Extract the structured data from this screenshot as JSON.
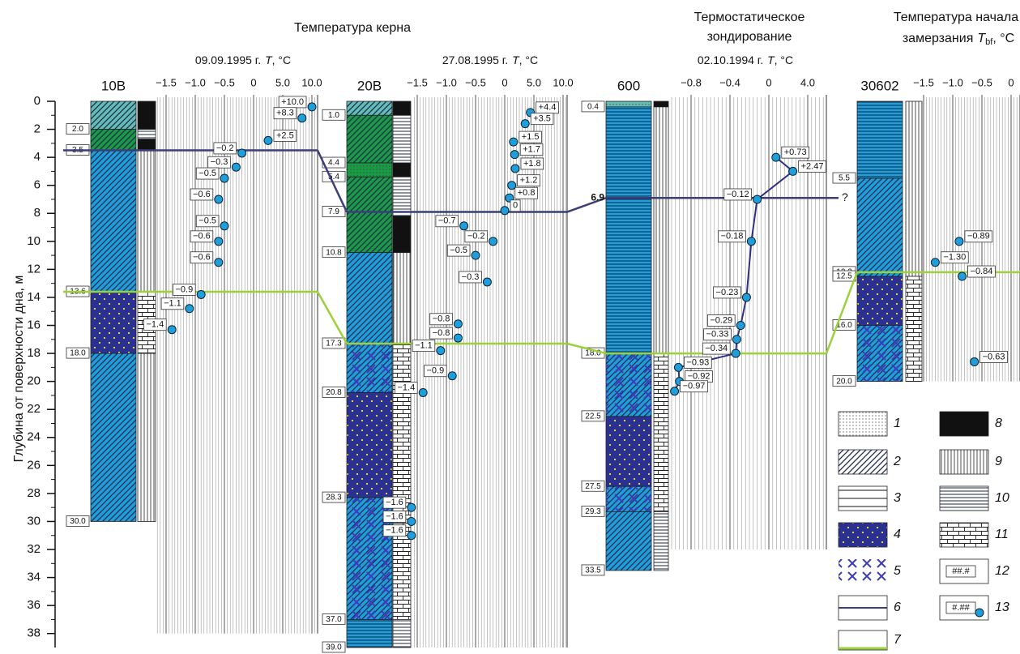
{
  "y_axis": {
    "label": "Глубина от поверхности дна, м",
    "ylim": [
      0,
      39
    ],
    "yticks": [
      0,
      2,
      4,
      6,
      8,
      10,
      12,
      14,
      16,
      18,
      20,
      22,
      24,
      26,
      28,
      30,
      32,
      34,
      36,
      38
    ]
  },
  "point_color": "#1e9fdc",
  "titles": {
    "core": "Температура керна",
    "probe": [
      "Термостатическое",
      "зондирование"
    ],
    "freeze": {
      "line1": "Температура начала",
      "line2": "замерзания",
      "symbol": "T",
      "subscript": "bf",
      "unit": ", °C"
    }
  },
  "legend": [
    {
      "label": "1",
      "color": "#ffffff"
    },
    {
      "label": "2",
      "color": "#ffffff"
    },
    {
      "label": "3",
      "color": "#ffffff"
    },
    {
      "label": "4",
      "color": "#2b3190"
    },
    {
      "label": "5",
      "color": "#ffffff"
    },
    {
      "label": "6",
      "color": "#3b3f78"
    },
    {
      "label": "7",
      "color": "#9bd13a"
    },
    {
      "label": "8",
      "color": "#111111"
    },
    {
      "label": "9",
      "color": "#ffffff"
    },
    {
      "label": "10",
      "color": "#ffffff"
    },
    {
      "label": "11",
      "color": "#ffffff"
    },
    {
      "label": "12",
      "sample": "##.#"
    },
    {
      "label": "13",
      "sample": "#.##"
    }
  ],
  "boundaries": [
    {
      "legend": "6",
      "depths": [
        3.5,
        7.9,
        6.9,
        null
      ],
      "note": "?"
    },
    {
      "legend": "7",
      "depths": [
        13.6,
        17.3,
        18.0,
        12.2
      ]
    }
  ],
  "boreholes": [
    {
      "name": "10В",
      "date": "09.09.1995 г.",
      "symbol": "T",
      "unit": ", °C",
      "xticks": [
        {
          "value": -1.5,
          "label": "−1.5"
        },
        {
          "value": -1,
          "label": "−1.0"
        },
        {
          "value": -0.5,
          "label": "−0.5"
        },
        0,
        {
          "value": 5,
          "label": "5.0"
        },
        {
          "value": 10,
          "label": "10.0"
        }
      ],
      "layers": [
        {
          "top": 0,
          "bottom": 2,
          "pattern": [
            "2"
          ],
          "color": "#62bdb4"
        },
        {
          "top": 2,
          "bottom": 3.5,
          "pattern": [
            "2"
          ],
          "color": "#1b9a45"
        },
        {
          "top": 3.5,
          "bottom": 13.6,
          "pattern": [
            "2"
          ],
          "color": "#1e9fdc"
        },
        {
          "top": 13.6,
          "bottom": 18,
          "pattern": [
            "4"
          ],
          "color": "#2b3190"
        },
        {
          "top": 18,
          "bottom": 30,
          "pattern": [
            "2"
          ],
          "color": "#1e9fdc"
        }
      ],
      "strip": [
        {
          "top": 0,
          "bottom": 2,
          "pattern": [
            "8"
          ]
        },
        {
          "top": 2,
          "bottom": 2.7,
          "pattern": [
            "10"
          ]
        },
        {
          "top": 2.7,
          "bottom": 3.5,
          "pattern": [
            "8"
          ]
        },
        {
          "top": 3.5,
          "bottom": 13.6,
          "pattern": [
            "9"
          ]
        },
        {
          "top": 13.6,
          "bottom": 18,
          "pattern": [
            "11"
          ]
        },
        {
          "top": 18,
          "bottom": 30,
          "pattern": [
            "9"
          ]
        }
      ],
      "depth_labels": [
        {
          "value": 2,
          "label": "2.0"
        },
        3.5,
        13.6,
        {
          "value": 18,
          "label": "18.0"
        },
        {
          "value": 30,
          "label": "30.0"
        }
      ],
      "points": [
        {
          "depth": 0.4,
          "temp": 10,
          "label": "+10.0"
        },
        {
          "depth": 1.2,
          "temp": 8.3,
          "label": "+8.3"
        },
        {
          "depth": 2.8,
          "temp": 2.5,
          "label": "+2.5"
        },
        {
          "depth": 3.7,
          "temp": -0.2,
          "label": "−0.2"
        },
        {
          "depth": 4.7,
          "temp": -0.3,
          "label": "−0.3"
        },
        {
          "depth": 5.5,
          "temp": -0.5,
          "label": "−0.5"
        },
        {
          "depth": 7.0,
          "temp": -0.6,
          "label": "−0.6"
        },
        {
          "depth": 8.9,
          "temp": -0.5,
          "label": "−0.5"
        },
        {
          "depth": 10.0,
          "temp": -0.6,
          "label": "−0.6"
        },
        {
          "depth": 11.5,
          "temp": -0.6,
          "label": "−0.6"
        },
        {
          "depth": 13.8,
          "temp": -0.9,
          "label": "−0.9"
        },
        {
          "depth": 14.8,
          "temp": -1.1,
          "label": "−1.1"
        },
        {
          "depth": 16.3,
          "temp": -1.4,
          "label": "−1.4"
        }
      ]
    },
    {
      "name": "20В",
      "date": "27.08.1995 г.",
      "symbol": "T",
      "unit": ", °C",
      "xticks": [
        {
          "value": -1.5,
          "label": "−1.5"
        },
        {
          "value": -1,
          "label": "−1.0"
        },
        {
          "value": -0.5,
          "label": "−0.5"
        },
        0,
        {
          "value": 5,
          "label": "5.0"
        },
        {
          "value": 10,
          "label": "10.0"
        }
      ],
      "layers": [
        {
          "top": 0,
          "bottom": 1,
          "pattern": [
            "2"
          ],
          "color": "#62bdb4"
        },
        {
          "top": 1,
          "bottom": 4.4,
          "pattern": [
            "2"
          ],
          "color": "#1b9a45"
        },
        {
          "top": 4.4,
          "bottom": 5.4,
          "pattern": [
            "1"
          ],
          "color": "#1b9a45"
        },
        {
          "top": 5.4,
          "bottom": 10.8,
          "pattern": [
            "2"
          ],
          "color": "#1b9a45"
        },
        {
          "top": 10.8,
          "bottom": 17.3,
          "pattern": [
            "2"
          ],
          "color": "#1e9fdc"
        },
        {
          "top": 17.3,
          "bottom": 20.8,
          "pattern": [
            "2",
            "5"
          ],
          "color": "#1e9fdc"
        },
        {
          "top": 20.8,
          "bottom": 28.3,
          "pattern": [
            "4"
          ],
          "color": "#2b3190"
        },
        {
          "top": 28.3,
          "bottom": 37,
          "pattern": [
            "2",
            "5"
          ],
          "color": "#1e9fdc"
        },
        {
          "top": 37,
          "bottom": 39,
          "pattern": [
            "10"
          ],
          "color": "#1e9fdc"
        }
      ],
      "strip": [
        {
          "top": 0,
          "bottom": 1,
          "pattern": [
            "8"
          ]
        },
        {
          "top": 1,
          "bottom": 4.4,
          "pattern": [
            "10"
          ]
        },
        {
          "top": 4.4,
          "bottom": 5.4,
          "pattern": [
            "8"
          ]
        },
        {
          "top": 5.4,
          "bottom": 8.2,
          "pattern": [
            "10"
          ]
        },
        {
          "top": 8.2,
          "bottom": 10.8,
          "pattern": [
            "8"
          ]
        },
        {
          "top": 10.8,
          "bottom": 17.3,
          "pattern": [
            "9"
          ]
        },
        {
          "top": 17.3,
          "bottom": 37,
          "pattern": [
            "11"
          ]
        },
        {
          "top": 37,
          "bottom": 39,
          "pattern": [
            "10"
          ]
        }
      ],
      "depth_labels": [
        {
          "value": 1,
          "label": "1.0"
        },
        4.4,
        5.4,
        7.9,
        10.8,
        17.3,
        20.8,
        28.3,
        {
          "value": 37,
          "label": "37.0"
        },
        {
          "value": 39,
          "label": "39.0"
        }
      ],
      "points": [
        {
          "depth": 0.8,
          "temp": 4.4,
          "label": "+4.4"
        },
        {
          "depth": 1.6,
          "temp": 3.5,
          "label": "+3.5"
        },
        {
          "depth": 2.9,
          "temp": 1.5,
          "label": "+1.5"
        },
        {
          "depth": 3.8,
          "temp": 1.7,
          "label": "+1.7"
        },
        {
          "depth": 4.8,
          "temp": 1.8,
          "label": "+1.8"
        },
        {
          "depth": 6.0,
          "temp": 1.2,
          "label": "+1.2"
        },
        {
          "depth": 6.9,
          "temp": 0.8,
          "label": "+0.8"
        },
        {
          "depth": 7.8,
          "temp": 0,
          "label": "0"
        },
        {
          "depth": 8.9,
          "temp": -0.7,
          "label": "−0.7"
        },
        {
          "depth": 10.0,
          "temp": -0.2,
          "label": "−0.2"
        },
        {
          "depth": 11.0,
          "temp": -0.5,
          "label": "−0.5"
        },
        {
          "depth": 12.9,
          "temp": -0.3,
          "label": "−0.3"
        },
        {
          "depth": 15.9,
          "temp": -0.8,
          "label": "−0.8"
        },
        {
          "depth": 16.9,
          "temp": -0.8,
          "label": "−0.8"
        },
        {
          "depth": 17.8,
          "temp": -1.1,
          "label": "−1.1"
        },
        {
          "depth": 19.6,
          "temp": -0.9,
          "label": "−0.9"
        },
        {
          "depth": 20.8,
          "temp": -1.4,
          "label": "−1.4"
        },
        {
          "depth": 29.0,
          "temp": -1.6,
          "label": "−1.6"
        },
        {
          "depth": 30.0,
          "temp": -1.6,
          "label": "−1.6"
        },
        {
          "depth": 31.0,
          "temp": -1.6,
          "label": "−1.6"
        }
      ]
    },
    {
      "name": "600",
      "date": "02.10.1994 г.",
      "symbol": "T",
      "unit": ", °C",
      "connected": true,
      "line_color": "#2e3080",
      "xticks": [
        {
          "value": -0.8,
          "label": "−0.8"
        },
        {
          "value": -0.4,
          "label": "−0.4"
        },
        0,
        {
          "value": 4,
          "label": "4.0"
        }
      ],
      "layers": [
        {
          "top": 0,
          "bottom": 0.4,
          "pattern": [
            "1"
          ],
          "color": "#62bdb4"
        },
        {
          "top": 0.4,
          "bottom": 18,
          "pattern": [
            "10"
          ],
          "color": "#1e9fdc"
        },
        {
          "top": 18,
          "bottom": 22.5,
          "pattern": [
            "2",
            "5"
          ],
          "color": "#1e9fdc"
        },
        {
          "top": 22.5,
          "bottom": 27.5,
          "pattern": [
            "4"
          ],
          "color": "#2b3190"
        },
        {
          "top": 27.5,
          "bottom": 29.3,
          "pattern": [
            "2",
            "5"
          ],
          "color": "#1e9fdc"
        },
        {
          "top": 29.3,
          "bottom": 33.5,
          "pattern": [
            "2"
          ],
          "color": "#1e9fdc"
        }
      ],
      "strip": [
        {
          "top": 0,
          "bottom": 0.4,
          "pattern": [
            "8"
          ]
        },
        {
          "top": 0.4,
          "bottom": 18,
          "pattern": [
            "9"
          ]
        },
        {
          "top": 18,
          "bottom": 29.3,
          "pattern": [
            "11"
          ]
        },
        {
          "top": 29.3,
          "bottom": 33.5,
          "pattern": [
            "10"
          ]
        }
      ],
      "depth_labels": [
        0.4,
        {
          "value": 18,
          "label": "18.0"
        },
        22.5,
        27.5,
        29.3,
        33.5
      ],
      "points": [
        {
          "depth": 4.0,
          "temp": 0.73,
          "label": "+0.73"
        },
        {
          "depth": 5.0,
          "temp": 2.47,
          "label": "+2.47"
        },
        {
          "depth": 7.0,
          "temp": -0.12,
          "label": "−0.12"
        },
        {
          "depth": 10.0,
          "temp": -0.18,
          "label": "−0.18"
        },
        {
          "depth": 14.0,
          "temp": -0.23,
          "label": "−0.23"
        },
        {
          "depth": 16.0,
          "temp": -0.29,
          "label": "−0.29"
        },
        {
          "depth": 17.0,
          "temp": -0.33,
          "label": "−0.33"
        },
        {
          "depth": 18.0,
          "temp": -0.34,
          "label": "−0.34"
        },
        {
          "depth": 19.0,
          "temp": -0.93,
          "label": "−0.93"
        },
        {
          "depth": 20.0,
          "temp": -0.92,
          "label": "−0.92"
        },
        {
          "depth": 20.7,
          "temp": -0.97,
          "label": "−0.97"
        }
      ]
    },
    {
      "name": "30602",
      "xticks": [
        {
          "value": -1.5,
          "label": "−1.5"
        },
        {
          "value": -1,
          "label": "−1.0"
        },
        {
          "value": -0.5,
          "label": "−0.5"
        },
        0
      ],
      "layers": [
        {
          "top": 0,
          "bottom": 5.5,
          "pattern": [
            "10"
          ],
          "color": "#1e9fdc"
        },
        {
          "top": 5.5,
          "bottom": 12.5,
          "pattern": [
            "2"
          ],
          "color": "#1e9fdc"
        },
        {
          "top": 12.5,
          "bottom": 16,
          "pattern": [
            "4"
          ],
          "color": "#2b3190"
        },
        {
          "top": 16,
          "bottom": 20,
          "pattern": [
            "2",
            "5"
          ],
          "color": "#1e9fdc"
        }
      ],
      "strip": [
        {
          "top": 0,
          "bottom": 12.5,
          "pattern": [
            "9"
          ]
        },
        {
          "top": 12.5,
          "bottom": 20,
          "pattern": [
            "11"
          ]
        }
      ],
      "depth_labels": [
        5.5,
        12.2,
        12.5,
        {
          "value": 16,
          "label": "16.0"
        },
        {
          "value": 20,
          "label": "20.0"
        }
      ],
      "points": [
        {
          "depth": 10.0,
          "temp": -0.89,
          "label": "−0.89"
        },
        {
          "depth": 11.5,
          "temp": -1.3,
          "label": "−1.30"
        },
        {
          "depth": 12.5,
          "temp": -0.84,
          "label": "−0.84"
        },
        {
          "depth": 18.6,
          "temp": -0.63,
          "label": "−0.63"
        }
      ]
    }
  ]
}
